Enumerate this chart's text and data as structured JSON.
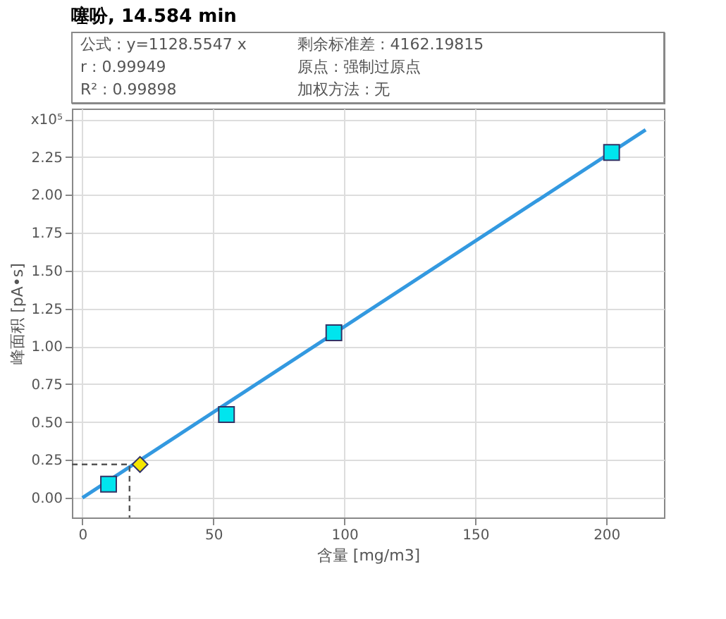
{
  "chart_data": {
    "type": "scatter",
    "title": "噻吩, 14.584 min",
    "annotations": [
      "公式 : y=1128.5547 x",
      "剩余标准差 : 4162.19815",
      "r : 0.99949",
      "原点 : 强制过原点",
      "R² : 0.99898",
      "加权方法 : 无"
    ],
    "xlabel": "含量 [mg/m3]",
    "ylabel": "峰面积 [pA•s]",
    "xlim": [
      -4,
      222
    ],
    "ylim": [
      -0.13,
      2.57
    ],
    "xticks": [
      0,
      50,
      100,
      150,
      200
    ],
    "yticks": [
      {
        "value": 0,
        "label": "0.00"
      },
      {
        "value": 0.25,
        "label": "0.25"
      },
      {
        "value": 0.5,
        "label": "0.50"
      },
      {
        "value": 0.75,
        "label": "0.75"
      },
      {
        "value": 1,
        "label": "1.00"
      },
      {
        "value": 1.25,
        "label": "1.25"
      },
      {
        "value": 1.5,
        "label": "1.50"
      },
      {
        "value": 1.75,
        "label": "1.75"
      },
      {
        "value": 2,
        "label": "2.00"
      },
      {
        "value": 2.25,
        "label": "2.25"
      },
      {
        "value": 2.5,
        "label": "x10⁵"
      }
    ],
    "grid": true,
    "series": [
      {
        "type": "line",
        "color": "#3399e0",
        "marker": "none",
        "line_style": "solid",
        "x": [
          0,
          215
        ],
        "values": [
          0,
          2.43
        ]
      },
      {
        "type": "line",
        "color": "#555555",
        "marker": "none",
        "line_style": "dashed",
        "x": [
          -4,
          18,
          18
        ],
        "values": [
          0.22,
          0.22,
          -0.13
        ]
      },
      {
        "color": "#00e5ee",
        "marker": "square",
        "x": [
          10,
          55,
          96,
          202
        ],
        "values": [
          0.09,
          0.55,
          1.09,
          2.28
        ]
      },
      {
        "color": "#f5e600",
        "marker": "diamond",
        "x": [
          22
        ],
        "values": [
          0.22
        ]
      }
    ]
  }
}
